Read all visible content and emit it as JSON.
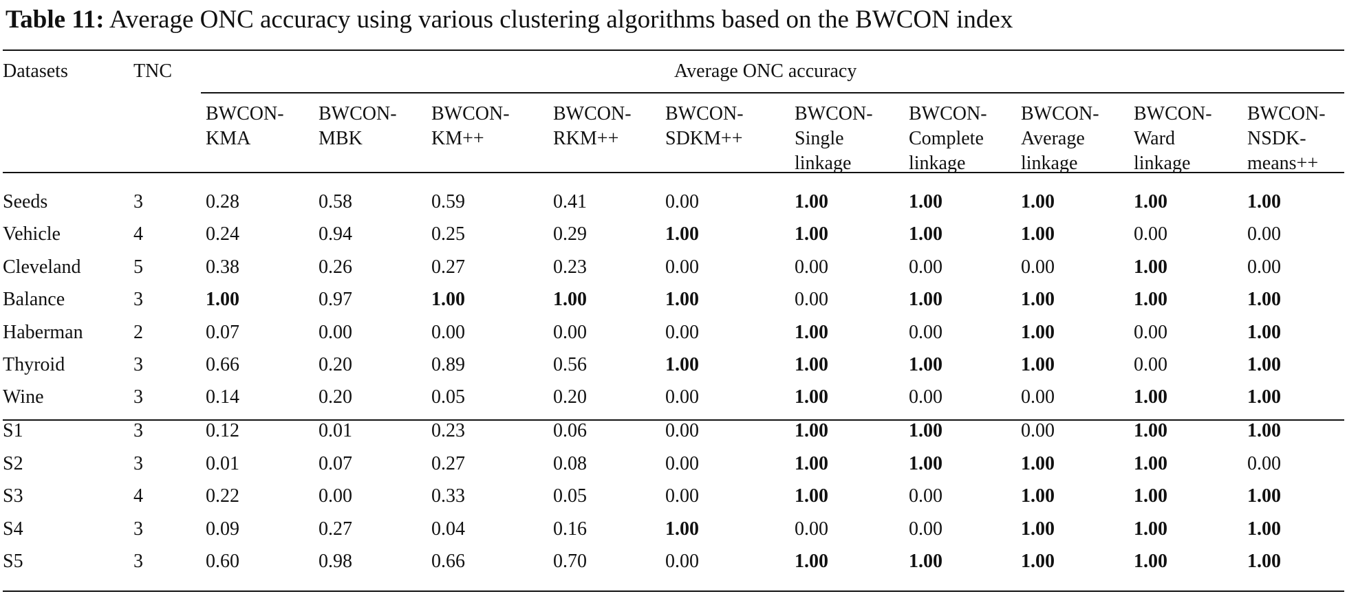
{
  "caption": {
    "label": "Table 11:",
    "text": "Average ONC accuracy using various clustering algorithms based on the BWCON index"
  },
  "header": {
    "datasets": "Datasets",
    "tnc": "TNC",
    "group": "Average ONC accuracy",
    "columns": [
      "BWCON-\nKMA",
      "BWCON-\nMBK",
      "BWCON-\nKM++",
      "BWCON-\nRKM++",
      "BWCON-\nSDKM++",
      "BWCON-\nSingle\nlinkage",
      "BWCON-\nComplete\nlinkage",
      "BWCON-\nAverage\nlinkage",
      "BWCON-\nWard\nlinkage",
      "BWCON-\nNSDK-\nmeans++"
    ]
  },
  "rows": [
    {
      "name": "Seeds",
      "tnc": "3",
      "values": [
        "0.28",
        "0.58",
        "0.59",
        "0.41",
        "0.00",
        "1.00",
        "1.00",
        "1.00",
        "1.00",
        "1.00"
      ],
      "bold": [
        0,
        0,
        0,
        0,
        0,
        1,
        1,
        1,
        1,
        1
      ]
    },
    {
      "name": "Vehicle",
      "tnc": "4",
      "values": [
        "0.24",
        "0.94",
        "0.25",
        "0.29",
        "1.00",
        "1.00",
        "1.00",
        "1.00",
        "0.00",
        "0.00"
      ],
      "bold": [
        0,
        0,
        0,
        0,
        1,
        1,
        1,
        1,
        0,
        0
      ]
    },
    {
      "name": "Cleveland",
      "tnc": "5",
      "values": [
        "0.38",
        "0.26",
        "0.27",
        "0.23",
        "0.00",
        "0.00",
        "0.00",
        "0.00",
        "1.00",
        "0.00"
      ],
      "bold": [
        0,
        0,
        0,
        0,
        0,
        0,
        0,
        0,
        1,
        0
      ]
    },
    {
      "name": "Balance",
      "tnc": "3",
      "values": [
        "1.00",
        "0.97",
        "1.00",
        "1.00",
        "1.00",
        "0.00",
        "1.00",
        "1.00",
        "1.00",
        "1.00"
      ],
      "bold": [
        1,
        0,
        1,
        1,
        1,
        0,
        1,
        1,
        1,
        1
      ]
    },
    {
      "name": "Haberman",
      "tnc": "2",
      "values": [
        "0.07",
        "0.00",
        "0.00",
        "0.00",
        "0.00",
        "1.00",
        "0.00",
        "1.00",
        "0.00",
        "1.00"
      ],
      "bold": [
        0,
        0,
        0,
        0,
        0,
        1,
        0,
        1,
        0,
        1
      ]
    },
    {
      "name": "Thyroid",
      "tnc": "3",
      "values": [
        "0.66",
        "0.20",
        "0.89",
        "0.56",
        "1.00",
        "1.00",
        "1.00",
        "1.00",
        "0.00",
        "1.00"
      ],
      "bold": [
        0,
        0,
        0,
        0,
        1,
        1,
        1,
        1,
        0,
        1
      ]
    },
    {
      "name": "Wine",
      "tnc": "3",
      "values": [
        "0.14",
        "0.20",
        "0.05",
        "0.20",
        "0.00",
        "1.00",
        "0.00",
        "0.00",
        "1.00",
        "1.00"
      ],
      "bold": [
        0,
        0,
        0,
        0,
        0,
        1,
        0,
        0,
        1,
        1
      ]
    },
    {
      "name": "S1",
      "tnc": "3",
      "values": [
        "0.12",
        "0.01",
        "0.23",
        "0.06",
        "0.00",
        "1.00",
        "1.00",
        "0.00",
        "1.00",
        "1.00"
      ],
      "bold": [
        0,
        0,
        0,
        0,
        0,
        1,
        1,
        0,
        1,
        1
      ]
    },
    {
      "name": "S2",
      "tnc": "3",
      "values": [
        "0.01",
        "0.07",
        "0.27",
        "0.08",
        "0.00",
        "1.00",
        "1.00",
        "1.00",
        "1.00",
        "0.00"
      ],
      "bold": [
        0,
        0,
        0,
        0,
        0,
        1,
        1,
        1,
        1,
        0
      ]
    },
    {
      "name": "S3",
      "tnc": "4",
      "values": [
        "0.22",
        "0.00",
        "0.33",
        "0.05",
        "0.00",
        "1.00",
        "0.00",
        "1.00",
        "1.00",
        "1.00"
      ],
      "bold": [
        0,
        0,
        0,
        0,
        0,
        1,
        0,
        1,
        1,
        1
      ]
    },
    {
      "name": "S4",
      "tnc": "3",
      "values": [
        "0.09",
        "0.27",
        "0.04",
        "0.16",
        "1.00",
        "0.00",
        "0.00",
        "1.00",
        "1.00",
        "1.00"
      ],
      "bold": [
        0,
        0,
        0,
        0,
        1,
        0,
        0,
        1,
        1,
        1
      ]
    },
    {
      "name": "S5",
      "tnc": "3",
      "values": [
        "0.60",
        "0.98",
        "0.66",
        "0.70",
        "0.00",
        "1.00",
        "1.00",
        "1.00",
        "1.00",
        "1.00"
      ],
      "bold": [
        0,
        0,
        0,
        0,
        0,
        1,
        1,
        1,
        1,
        1
      ]
    }
  ]
}
